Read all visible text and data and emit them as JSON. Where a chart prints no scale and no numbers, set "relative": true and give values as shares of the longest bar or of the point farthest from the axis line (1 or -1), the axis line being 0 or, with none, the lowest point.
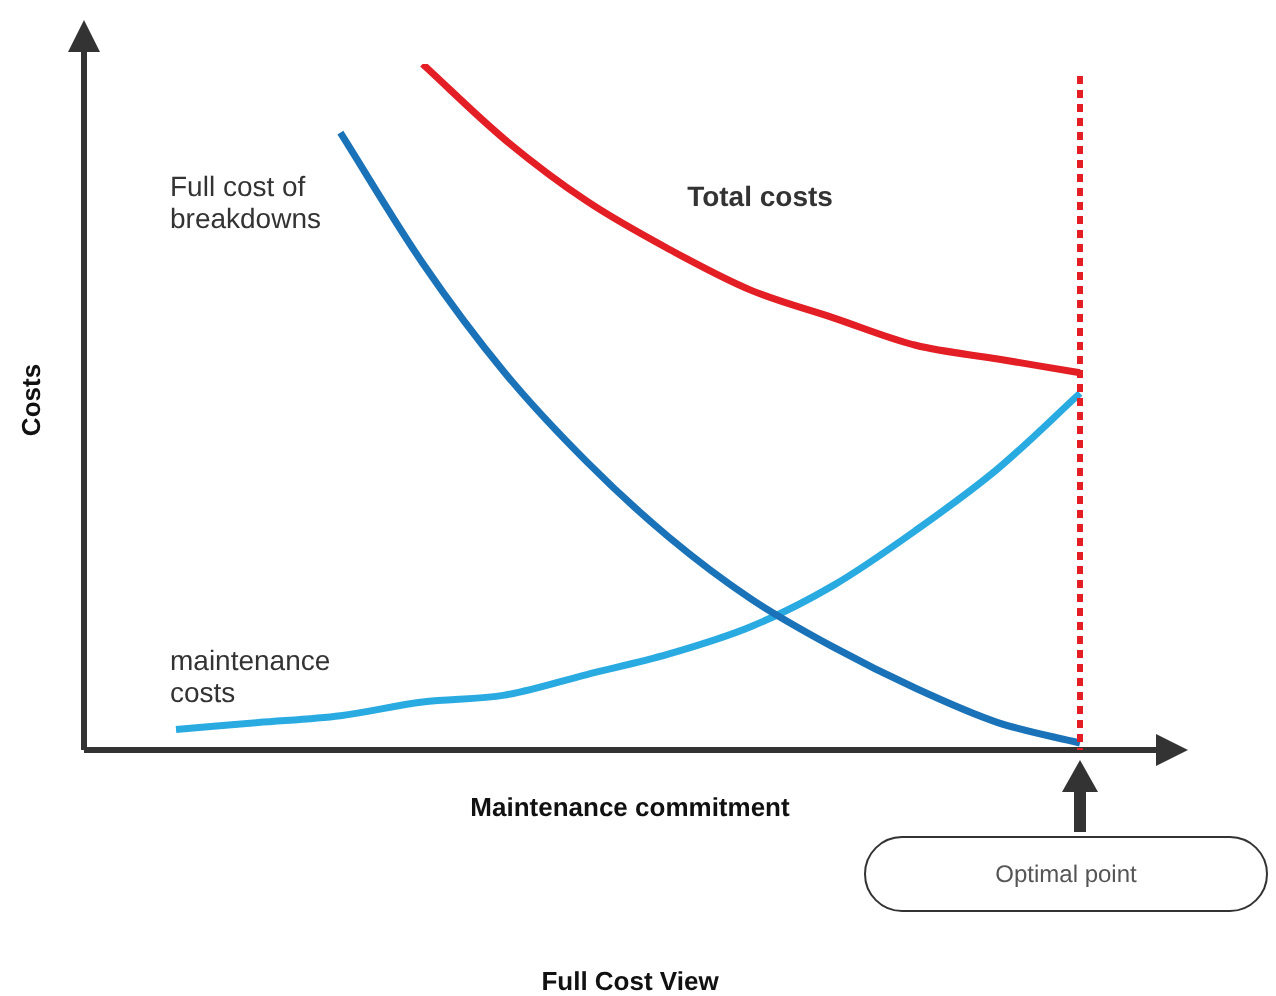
{
  "chart_data": {
    "type": "line",
    "relative": true,
    "title": "Full Cost View",
    "xlabel": "Maintenance commitment",
    "ylabel": "Costs",
    "categories": [
      null,
      null,
      null,
      null,
      null,
      null,
      null,
      null,
      null,
      null,
      null,
      null
    ],
    "series": [
      {
        "name": "Full cost of breakdowns",
        "color": "#1a72b8",
        "values": [
          null,
          null,
          0.9,
          0.71,
          0.55,
          0.42,
          0.31,
          0.22,
          0.15,
          0.09,
          0.04,
          0.01
        ]
      },
      {
        "name": "Total costs",
        "color": "#e31e24",
        "values": [
          null,
          null,
          null,
          1,
          0.89,
          0.8,
          0.73,
          0.67,
          0.63,
          0.59,
          0.57,
          0.55
        ]
      },
      {
        "name": "maintenance costs",
        "color": "#29abe2",
        "values": [
          0.03,
          0.04,
          0.05,
          0.07,
          0.08,
          0.11,
          0.14,
          0.18,
          0.24,
          0.32,
          0.41,
          0.52
        ]
      }
    ],
    "annotations": [
      "Optimal point"
    ],
    "legend": false,
    "marker": "none",
    "line_style": "solid"
  }
}
